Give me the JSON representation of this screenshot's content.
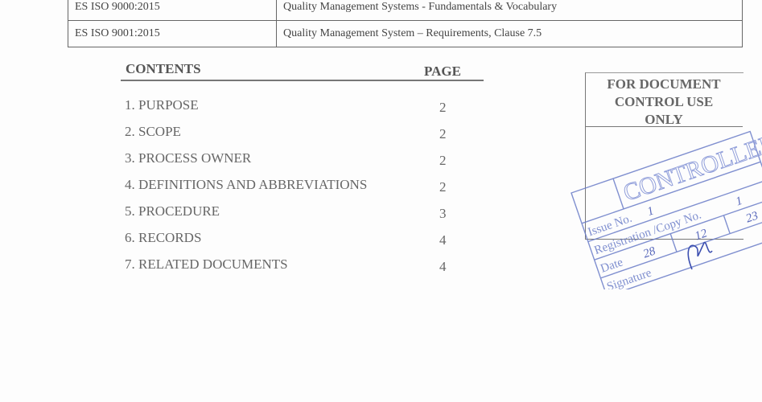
{
  "references": [
    {
      "code": "ES ISO 9000:2015",
      "title": "Quality Management Systems - Fundamentals & Vocabulary"
    },
    {
      "code": "ES ISO 9001:2015",
      "title": "Quality Management System – Requirements, Clause 7.5"
    }
  ],
  "contents": {
    "heading": "CONTENTS",
    "page_heading": "PAGE",
    "items": [
      {
        "label": "1. PURPOSE",
        "page": "2"
      },
      {
        "label": "2. SCOPE",
        "page": "2"
      },
      {
        "label": "3. PROCESS OWNER",
        "page": "2"
      },
      {
        "label": "4. DEFINITIONS AND ABBREVIATIONS",
        "page": "2"
      },
      {
        "label": "5. PROCEDURE",
        "page": "3"
      },
      {
        "label": "6. RECORDS",
        "page": "4"
      },
      {
        "label": "7. RELATED DOCUMENTS",
        "page": "4"
      }
    ]
  },
  "control_box": {
    "heading_lines": [
      "FOR DOCUMENT",
      "CONTROL USE",
      "ONLY"
    ]
  },
  "stamp": {
    "color": "#5b6fc4",
    "title": "CONTROLLED",
    "issue_label": "Issue No.",
    "issue_value": "1",
    "registration_label": "Registration /Copy No.",
    "registration_value": "1",
    "date_label": "Date",
    "date_day": "28",
    "date_month": "12",
    "date_year": "23",
    "signature_label": "Signature"
  }
}
